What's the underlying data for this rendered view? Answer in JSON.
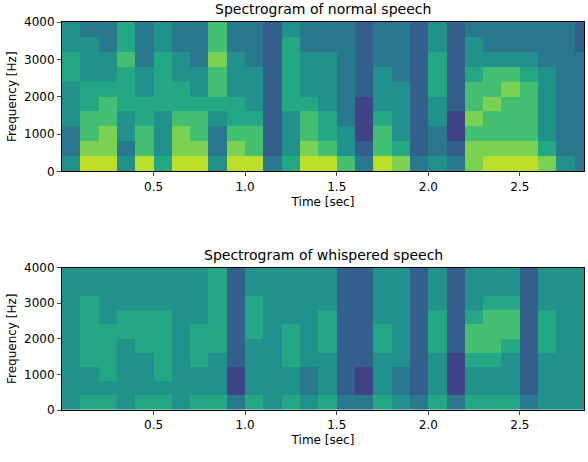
{
  "chart_data": [
    {
      "type": "heatmap",
      "title": "Spectrogram of normal speech",
      "x_label": "Time [sec]",
      "y_label": "Frequency [Hz]",
      "color": "Viridis",
      "x": [
        0.05,
        0.15,
        0.25,
        0.35,
        0.45,
        0.55,
        0.65,
        0.75,
        0.85,
        0.95,
        1.05,
        1.15,
        1.25,
        1.35,
        1.45,
        1.55,
        1.65,
        1.75,
        1.85,
        1.95,
        2.05,
        2.15,
        2.25,
        2.35,
        2.45,
        2.55,
        2.65,
        2.75,
        2.85
      ],
      "y": [
        200,
        600,
        1000,
        1400,
        1800,
        2200,
        2600,
        3000,
        3400,
        3800
      ],
      "cells": [
        [
          5,
          4,
          4,
          5,
          5,
          5,
          6,
          6,
          5,
          5
        ],
        [
          9,
          8,
          7,
          7,
          6,
          6,
          5,
          5,
          5,
          4
        ],
        [
          9,
          8,
          8,
          7,
          7,
          6,
          5,
          5,
          4,
          4
        ],
        [
          5,
          4,
          5,
          5,
          6,
          6,
          6,
          7,
          6,
          6
        ],
        [
          9,
          7,
          7,
          6,
          6,
          5,
          5,
          4,
          4,
          4
        ],
        [
          6,
          5,
          5,
          5,
          6,
          6,
          6,
          6,
          5,
          5
        ],
        [
          9,
          8,
          8,
          7,
          6,
          6,
          5,
          5,
          4,
          4
        ],
        [
          9,
          8,
          7,
          7,
          6,
          5,
          5,
          4,
          4,
          4
        ],
        [
          5,
          4,
          4,
          5,
          6,
          7,
          7,
          8,
          7,
          7
        ],
        [
          9,
          8,
          7,
          6,
          6,
          5,
          5,
          5,
          4,
          4
        ],
        [
          9,
          7,
          7,
          6,
          5,
          5,
          5,
          4,
          4,
          4
        ],
        [
          4,
          3,
          3,
          3,
          3,
          3,
          3,
          3,
          3,
          3
        ],
        [
          6,
          5,
          5,
          5,
          6,
          6,
          6,
          6,
          6,
          5
        ],
        [
          9,
          8,
          7,
          7,
          6,
          5,
          5,
          5,
          4,
          4
        ],
        [
          9,
          7,
          6,
          6,
          5,
          5,
          5,
          5,
          4,
          4
        ],
        [
          7,
          5,
          5,
          4,
          4,
          4,
          4,
          4,
          4,
          4
        ],
        [
          4,
          3,
          2,
          2,
          2,
          3,
          3,
          3,
          3,
          3
        ],
        [
          9,
          7,
          7,
          6,
          5,
          5,
          5,
          4,
          4,
          4
        ],
        [
          8,
          6,
          5,
          5,
          5,
          5,
          4,
          4,
          4,
          4
        ],
        [
          4,
          3,
          3,
          3,
          3,
          3,
          3,
          3,
          3,
          3
        ],
        [
          5,
          4,
          4,
          5,
          5,
          6,
          6,
          6,
          5,
          5
        ],
        [
          4,
          3,
          2,
          2,
          3,
          3,
          3,
          3,
          3,
          3
        ],
        [
          8,
          8,
          7,
          8,
          7,
          7,
          6,
          5,
          5,
          4
        ],
        [
          9,
          8,
          7,
          7,
          8,
          7,
          7,
          5,
          4,
          4
        ],
        [
          9,
          8,
          7,
          7,
          7,
          8,
          7,
          5,
          4,
          4
        ],
        [
          9,
          8,
          7,
          7,
          7,
          7,
          6,
          5,
          4,
          4
        ],
        [
          8,
          6,
          5,
          5,
          5,
          5,
          5,
          4,
          4,
          4
        ],
        [
          5,
          4,
          4,
          4,
          4,
          4,
          4,
          4,
          4,
          4
        ],
        [
          4,
          4,
          4,
          4,
          4,
          4,
          4,
          4,
          3,
          3
        ]
      ],
      "zlim": [
        0,
        10
      ],
      "xlim": [
        0,
        2.85
      ],
      "ylim": [
        0,
        4000
      ],
      "xticks": [
        0.5,
        {
          "value": 1,
          "label": "1.0"
        },
        1.5,
        {
          "value": 2,
          "label": "2.0"
        },
        2.5
      ],
      "yticks": [
        0,
        1000,
        2000,
        3000,
        4000
      ]
    },
    {
      "type": "heatmap",
      "title": "Spectrogram of whispered speech",
      "x_label": "Time [sec]",
      "y_label": "Frequency [Hz]",
      "color": "Viridis",
      "x": [
        0.05,
        0.15,
        0.25,
        0.35,
        0.45,
        0.55,
        0.65,
        0.75,
        0.85,
        0.95,
        1.05,
        1.15,
        1.25,
        1.35,
        1.45,
        1.55,
        1.65,
        1.75,
        1.85,
        1.95,
        2.05,
        2.15,
        2.25,
        2.35,
        2.45,
        2.55,
        2.65,
        2.75,
        2.85
      ],
      "y": [
        200,
        600,
        1000,
        1400,
        1800,
        2200,
        2600,
        3000,
        3400,
        3800
      ],
      "cells": [
        [
          5,
          5,
          5,
          5,
          5,
          5,
          5,
          5,
          5,
          5
        ],
        [
          6,
          5,
          5,
          6,
          6,
          6,
          6,
          6,
          5,
          5
        ],
        [
          6,
          5,
          6,
          6,
          6,
          6,
          5,
          5,
          5,
          5
        ],
        [
          5,
          5,
          5,
          5,
          5,
          6,
          6,
          5,
          5,
          5
        ],
        [
          6,
          5,
          5,
          5,
          6,
          6,
          6,
          5,
          5,
          5
        ],
        [
          6,
          5,
          6,
          6,
          6,
          6,
          6,
          5,
          5,
          5
        ],
        [
          5,
          5,
          5,
          5,
          5,
          5,
          5,
          5,
          5,
          5
        ],
        [
          6,
          5,
          5,
          6,
          6,
          6,
          5,
          5,
          5,
          5
        ],
        [
          6,
          5,
          5,
          5,
          6,
          6,
          6,
          6,
          6,
          6
        ],
        [
          4,
          2,
          2,
          3,
          3,
          3,
          3,
          3,
          3,
          3
        ],
        [
          6,
          5,
          5,
          5,
          5,
          6,
          6,
          6,
          5,
          5
        ],
        [
          5,
          5,
          5,
          5,
          5,
          5,
          5,
          5,
          5,
          5
        ],
        [
          6,
          5,
          5,
          6,
          6,
          6,
          5,
          5,
          5,
          5
        ],
        [
          5,
          4,
          4,
          5,
          5,
          5,
          5,
          5,
          5,
          5
        ],
        [
          6,
          5,
          5,
          5,
          6,
          6,
          6,
          5,
          5,
          5
        ],
        [
          4,
          3,
          3,
          3,
          3,
          3,
          3,
          3,
          3,
          3
        ],
        [
          4,
          2,
          2,
          3,
          3,
          3,
          3,
          3,
          3,
          3
        ],
        [
          6,
          5,
          5,
          5,
          6,
          6,
          5,
          5,
          5,
          5
        ],
        [
          5,
          4,
          4,
          5,
          5,
          5,
          5,
          5,
          5,
          5
        ],
        [
          4,
          3,
          3,
          3,
          3,
          3,
          3,
          3,
          3,
          3
        ],
        [
          6,
          5,
          5,
          5,
          6,
          6,
          6,
          5,
          5,
          5
        ],
        [
          4,
          2,
          2,
          2,
          3,
          3,
          3,
          3,
          3,
          3
        ],
        [
          6,
          5,
          5,
          6,
          7,
          7,
          6,
          5,
          5,
          5
        ],
        [
          6,
          5,
          5,
          6,
          7,
          7,
          7,
          6,
          5,
          5
        ],
        [
          6,
          5,
          5,
          5,
          6,
          7,
          7,
          6,
          5,
          5
        ],
        [
          4,
          3,
          3,
          3,
          3,
          3,
          3,
          3,
          3,
          3
        ],
        [
          5,
          5,
          5,
          5,
          6,
          6,
          6,
          5,
          5,
          5
        ],
        [
          5,
          5,
          5,
          5,
          5,
          5,
          5,
          5,
          5,
          5
        ],
        [
          5,
          5,
          5,
          5,
          5,
          5,
          5,
          5,
          5,
          5
        ]
      ],
      "zlim": [
        0,
        10
      ],
      "xlim": [
        0,
        2.85
      ],
      "ylim": [
        0,
        4000
      ],
      "xticks": [
        0.5,
        {
          "value": 1,
          "label": "1.0"
        },
        1.5,
        {
          "value": 2,
          "label": "2.0"
        },
        2.5
      ],
      "yticks": [
        0,
        1000,
        2000,
        3000,
        4000
      ]
    }
  ]
}
